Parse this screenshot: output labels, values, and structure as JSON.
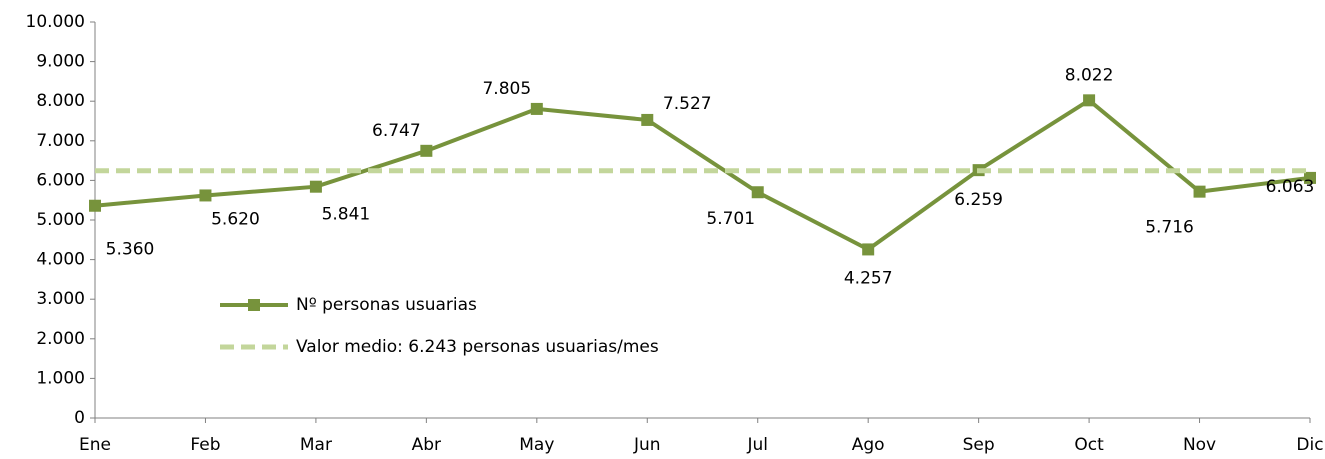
{
  "chart_data": {
    "type": "line",
    "categories": [
      "Ene",
      "Feb",
      "Mar",
      "Abr",
      "May",
      "Jun",
      "Jul",
      "Ago",
      "Sep",
      "Oct",
      "Nov",
      "Dic"
    ],
    "series": [
      {
        "name": "Nº personas usuarias",
        "color": "#77933c",
        "style": "solid",
        "marker": "square",
        "values": [
          5360,
          5620,
          5841,
          6747,
          7805,
          7527,
          5701,
          4257,
          6259,
          8022,
          5716,
          6063
        ],
        "value_labels": [
          "5.360",
          "5.620",
          "5.841",
          "6.747",
          "7.805",
          "7.527",
          "5.701",
          "4.257",
          "6.259",
          "8.022",
          "5.716",
          "6.063"
        ]
      },
      {
        "name": "Valor medio: 6.243 personas usuarias/mes",
        "color": "#c3d69b",
        "style": "dashed",
        "marker": "none",
        "values": [
          6243,
          6243,
          6243,
          6243,
          6243,
          6243,
          6243,
          6243,
          6243,
          6243,
          6243,
          6243
        ]
      }
    ],
    "ylim": [
      0,
      10000
    ],
    "yticks": [
      0,
      {
        "value": 1000,
        "label": "1.000"
      },
      {
        "value": 2000,
        "label": "2.000"
      },
      {
        "value": 3000,
        "label": "3.000"
      },
      {
        "value": 4000,
        "label": "4.000"
      },
      {
        "value": 5000,
        "label": "5.000"
      },
      {
        "value": 6000,
        "label": "6.000"
      },
      {
        "value": 7000,
        "label": "7.000"
      },
      {
        "value": 8000,
        "label": "8.000"
      },
      {
        "value": 9000,
        "label": "9.000"
      },
      {
        "value": 10000,
        "label": "10.000"
      }
    ],
    "grid": false,
    "legend": "left"
  }
}
